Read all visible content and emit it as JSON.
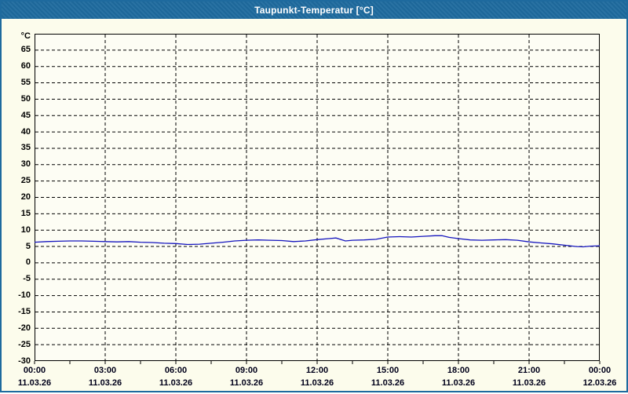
{
  "window": {
    "title": "Taupunkt-Temperatur [°C]"
  },
  "colors": {
    "titlebar": "#1e6a9e",
    "window_border": "#1e6a9e",
    "background": "#fcfcec",
    "plot_background": "#fdfdf4",
    "plot_border": "#000000",
    "grid": "#000000",
    "axis_text": "#000000",
    "line": "#1515be"
  },
  "chart_data": {
    "type": "line",
    "title": "Taupunkt-Temperatur [°C]",
    "unit": "°C",
    "xlim_hours": [
      0,
      24
    ],
    "ylim": [
      -30,
      70
    ],
    "grid": "dashed",
    "legend": "none",
    "y_ticks": [
      65,
      60,
      55,
      50,
      45,
      40,
      35,
      30,
      25,
      20,
      15,
      10,
      5,
      0,
      -5,
      -10,
      -15,
      -20,
      -25,
      -30
    ],
    "x_minor_tick_hours": 1.5,
    "x_ticks": [
      {
        "hour": 0,
        "time": "00:00",
        "date": "11.03.26"
      },
      {
        "hour": 3,
        "time": "03:00",
        "date": "11.03.26"
      },
      {
        "hour": 6,
        "time": "06:00",
        "date": "11.03.26"
      },
      {
        "hour": 9,
        "time": "09:00",
        "date": "11.03.26"
      },
      {
        "hour": 12,
        "time": "12:00",
        "date": "11.03.26"
      },
      {
        "hour": 15,
        "time": "15:00",
        "date": "11.03.26"
      },
      {
        "hour": 18,
        "time": "18:00",
        "date": "11.03.26"
      },
      {
        "hour": 21,
        "time": "21:00",
        "date": "11.03.26"
      },
      {
        "hour": 24,
        "time": "00:00",
        "date": "12.03.26"
      }
    ],
    "series": [
      {
        "name": "Taupunkt-Temperatur",
        "color": "#1515be",
        "points": [
          [
            0.0,
            6.3
          ],
          [
            0.5,
            6.5
          ],
          [
            1.0,
            6.6
          ],
          [
            1.5,
            6.7
          ],
          [
            2.0,
            6.7
          ],
          [
            2.5,
            6.6
          ],
          [
            3.0,
            6.5
          ],
          [
            3.5,
            6.4
          ],
          [
            4.0,
            6.5
          ],
          [
            4.5,
            6.3
          ],
          [
            5.0,
            6.2
          ],
          [
            5.5,
            6.0
          ],
          [
            6.0,
            5.9
          ],
          [
            6.5,
            5.6
          ],
          [
            7.0,
            5.7
          ],
          [
            7.5,
            6.0
          ],
          [
            8.0,
            6.3
          ],
          [
            8.5,
            6.7
          ],
          [
            9.0,
            6.9
          ],
          [
            9.5,
            7.0
          ],
          [
            10.0,
            6.9
          ],
          [
            10.5,
            6.8
          ],
          [
            11.0,
            6.5
          ],
          [
            11.5,
            6.7
          ],
          [
            12.0,
            7.1
          ],
          [
            12.5,
            7.4
          ],
          [
            12.8,
            7.6
          ],
          [
            13.2,
            6.7
          ],
          [
            13.5,
            6.9
          ],
          [
            14.0,
            7.0
          ],
          [
            14.5,
            7.2
          ],
          [
            15.0,
            7.9
          ],
          [
            15.5,
            8.0
          ],
          [
            16.0,
            7.9
          ],
          [
            16.5,
            8.1
          ],
          [
            17.0,
            8.3
          ],
          [
            17.3,
            8.3
          ],
          [
            17.6,
            7.8
          ],
          [
            18.0,
            7.4
          ],
          [
            18.5,
            7.0
          ],
          [
            19.0,
            6.9
          ],
          [
            19.5,
            7.0
          ],
          [
            20.0,
            7.1
          ],
          [
            20.5,
            6.9
          ],
          [
            21.0,
            6.4
          ],
          [
            21.5,
            6.1
          ],
          [
            22.0,
            5.8
          ],
          [
            22.5,
            5.4
          ],
          [
            23.0,
            5.0
          ],
          [
            23.3,
            4.9
          ],
          [
            23.6,
            5.1
          ],
          [
            24.0,
            5.2
          ]
        ]
      }
    ]
  }
}
